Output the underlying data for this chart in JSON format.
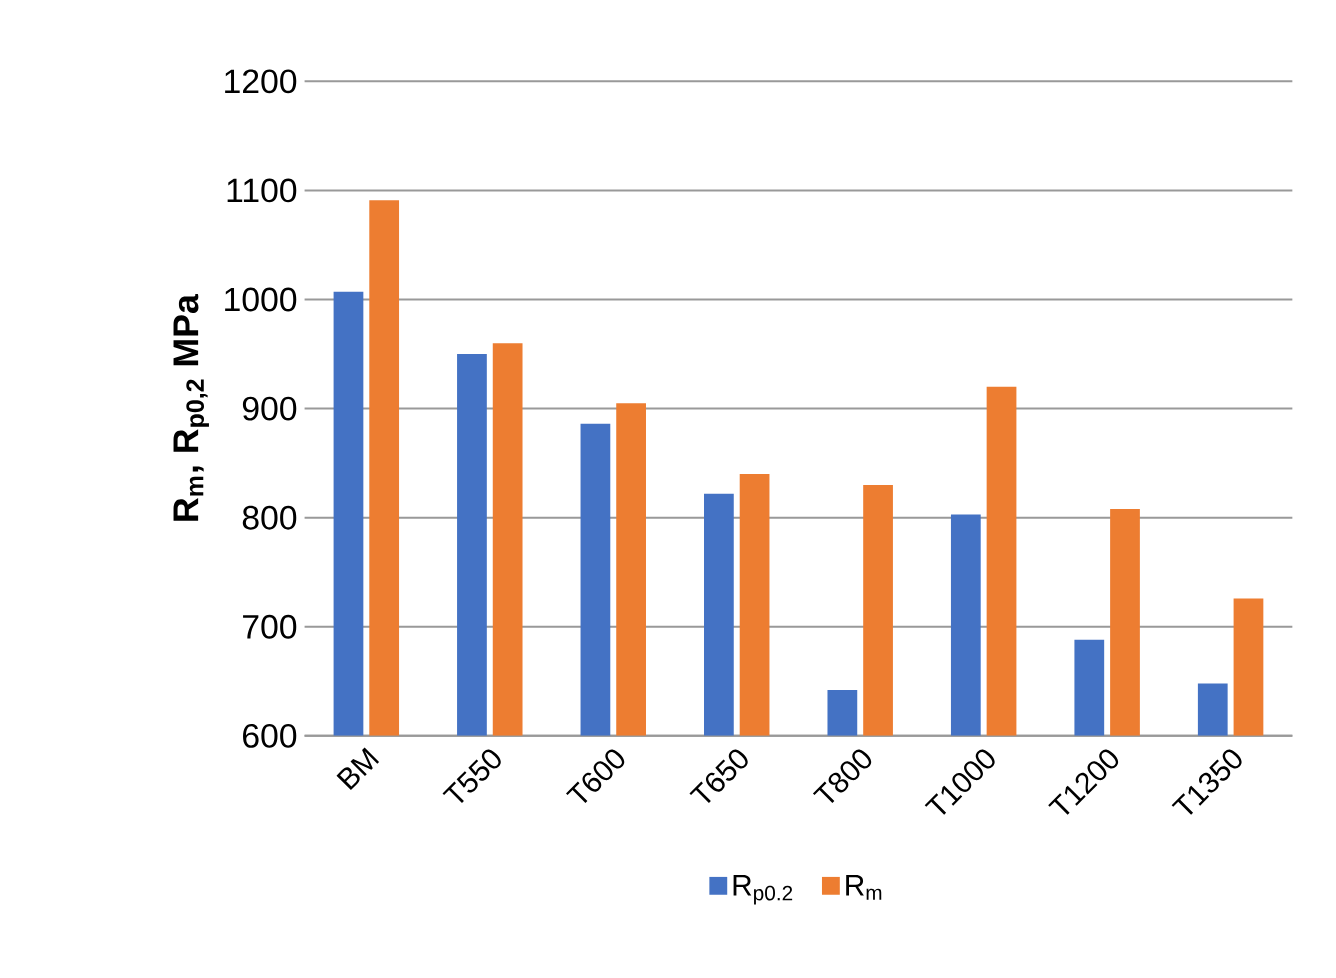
{
  "chart_data": {
    "type": "bar",
    "ylabel": "R$_{m}$, R$_{p0,2}$  MPa",
    "categories": [
      "BM",
      "T550",
      "T600",
      "T650",
      "T800",
      "T1000",
      "T1200",
      "T1350"
    ],
    "series": [
      {
        "name": "R$_{p0.2}$",
        "color": "#4472c4",
        "values": [
          1007,
          950,
          886,
          822,
          642,
          803,
          688,
          648
        ]
      },
      {
        "name": "R$_{m}$",
        "color": "#ed7d31",
        "values": [
          1091,
          960,
          905,
          840,
          830,
          920,
          808,
          726
        ]
      }
    ],
    "ylim": [
      600,
      1200
    ],
    "yticks": [
      600,
      700,
      800,
      900,
      1000,
      1100,
      1200
    ],
    "grid": "y",
    "legend": "bottom"
  }
}
